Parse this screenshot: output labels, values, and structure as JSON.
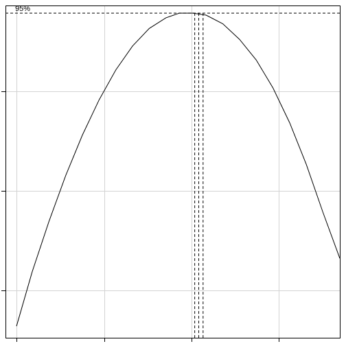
{
  "chart_data": {
    "type": "line",
    "title": "",
    "xlabel": "",
    "ylabel": "",
    "xlim": [
      0,
      1
    ],
    "ylim": [
      0,
      1
    ],
    "x_gridlines": [
      0.033,
      0.295,
      0.557,
      0.818
    ],
    "y_gridlines": [
      0.143,
      0.442,
      0.741
    ],
    "grid": true,
    "series": [
      {
        "values": [
          [
            0.033,
            0.035
          ],
          [
            0.08,
            0.199
          ],
          [
            0.13,
            0.35
          ],
          [
            0.18,
            0.488
          ],
          [
            0.23,
            0.61
          ],
          [
            0.28,
            0.716
          ],
          [
            0.33,
            0.806
          ],
          [
            0.38,
            0.878
          ],
          [
            0.43,
            0.931
          ],
          [
            0.48,
            0.963
          ],
          [
            0.52,
            0.977
          ],
          [
            0.56,
            0.977
          ],
          [
            0.6,
            0.971
          ],
          [
            0.65,
            0.945
          ],
          [
            0.7,
            0.898
          ],
          [
            0.75,
            0.836
          ],
          [
            0.8,
            0.752
          ],
          [
            0.85,
            0.647
          ],
          [
            0.9,
            0.521
          ],
          [
            0.95,
            0.376
          ],
          [
            1.0,
            0.239
          ]
        ]
      }
    ],
    "reference_lines": {
      "level": 0.977,
      "level_label": "95%",
      "estimate": 0.578,
      "ci_lower": 0.566,
      "ci_upper": 0.591
    }
  }
}
